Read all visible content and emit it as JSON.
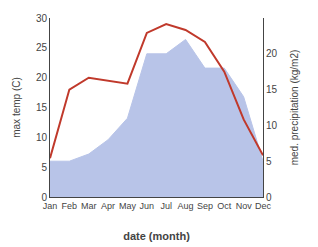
{
  "chart_data": {
    "type": "line",
    "xlabel": "date (month)",
    "ylabel": "max temp (C)",
    "y2label": "med. precipitation (kg/m2)",
    "categories": [
      "Jan",
      "Feb",
      "Mar",
      "Apr",
      "May",
      "Jun",
      "Jul",
      "Aug",
      "Sep",
      "Oct",
      "Nov",
      "Dec"
    ],
    "series": [
      {
        "type": "area",
        "axis": "y2",
        "color": "#b8c4e8",
        "values": [
          5.0,
          5.0,
          6.0,
          8.0,
          11.0,
          20.0,
          20.0,
          22.0,
          18.0,
          18.0,
          14.0,
          5.0
        ]
      },
      {
        "type": "line",
        "color": "#c0392b",
        "values": [
          6.5,
          18.0,
          20.0,
          19.5,
          19.0,
          27.5,
          29.0,
          28.0,
          26.0,
          21.0,
          13.0,
          7.0
        ]
      }
    ],
    "ylim": [
      0,
      30
    ],
    "yticks": [
      0,
      5,
      10,
      15,
      20,
      25,
      30
    ],
    "y2lim": [
      0,
      25
    ],
    "y2ticks": [
      0,
      5,
      10,
      15,
      20
    ],
    "grid": false
  }
}
